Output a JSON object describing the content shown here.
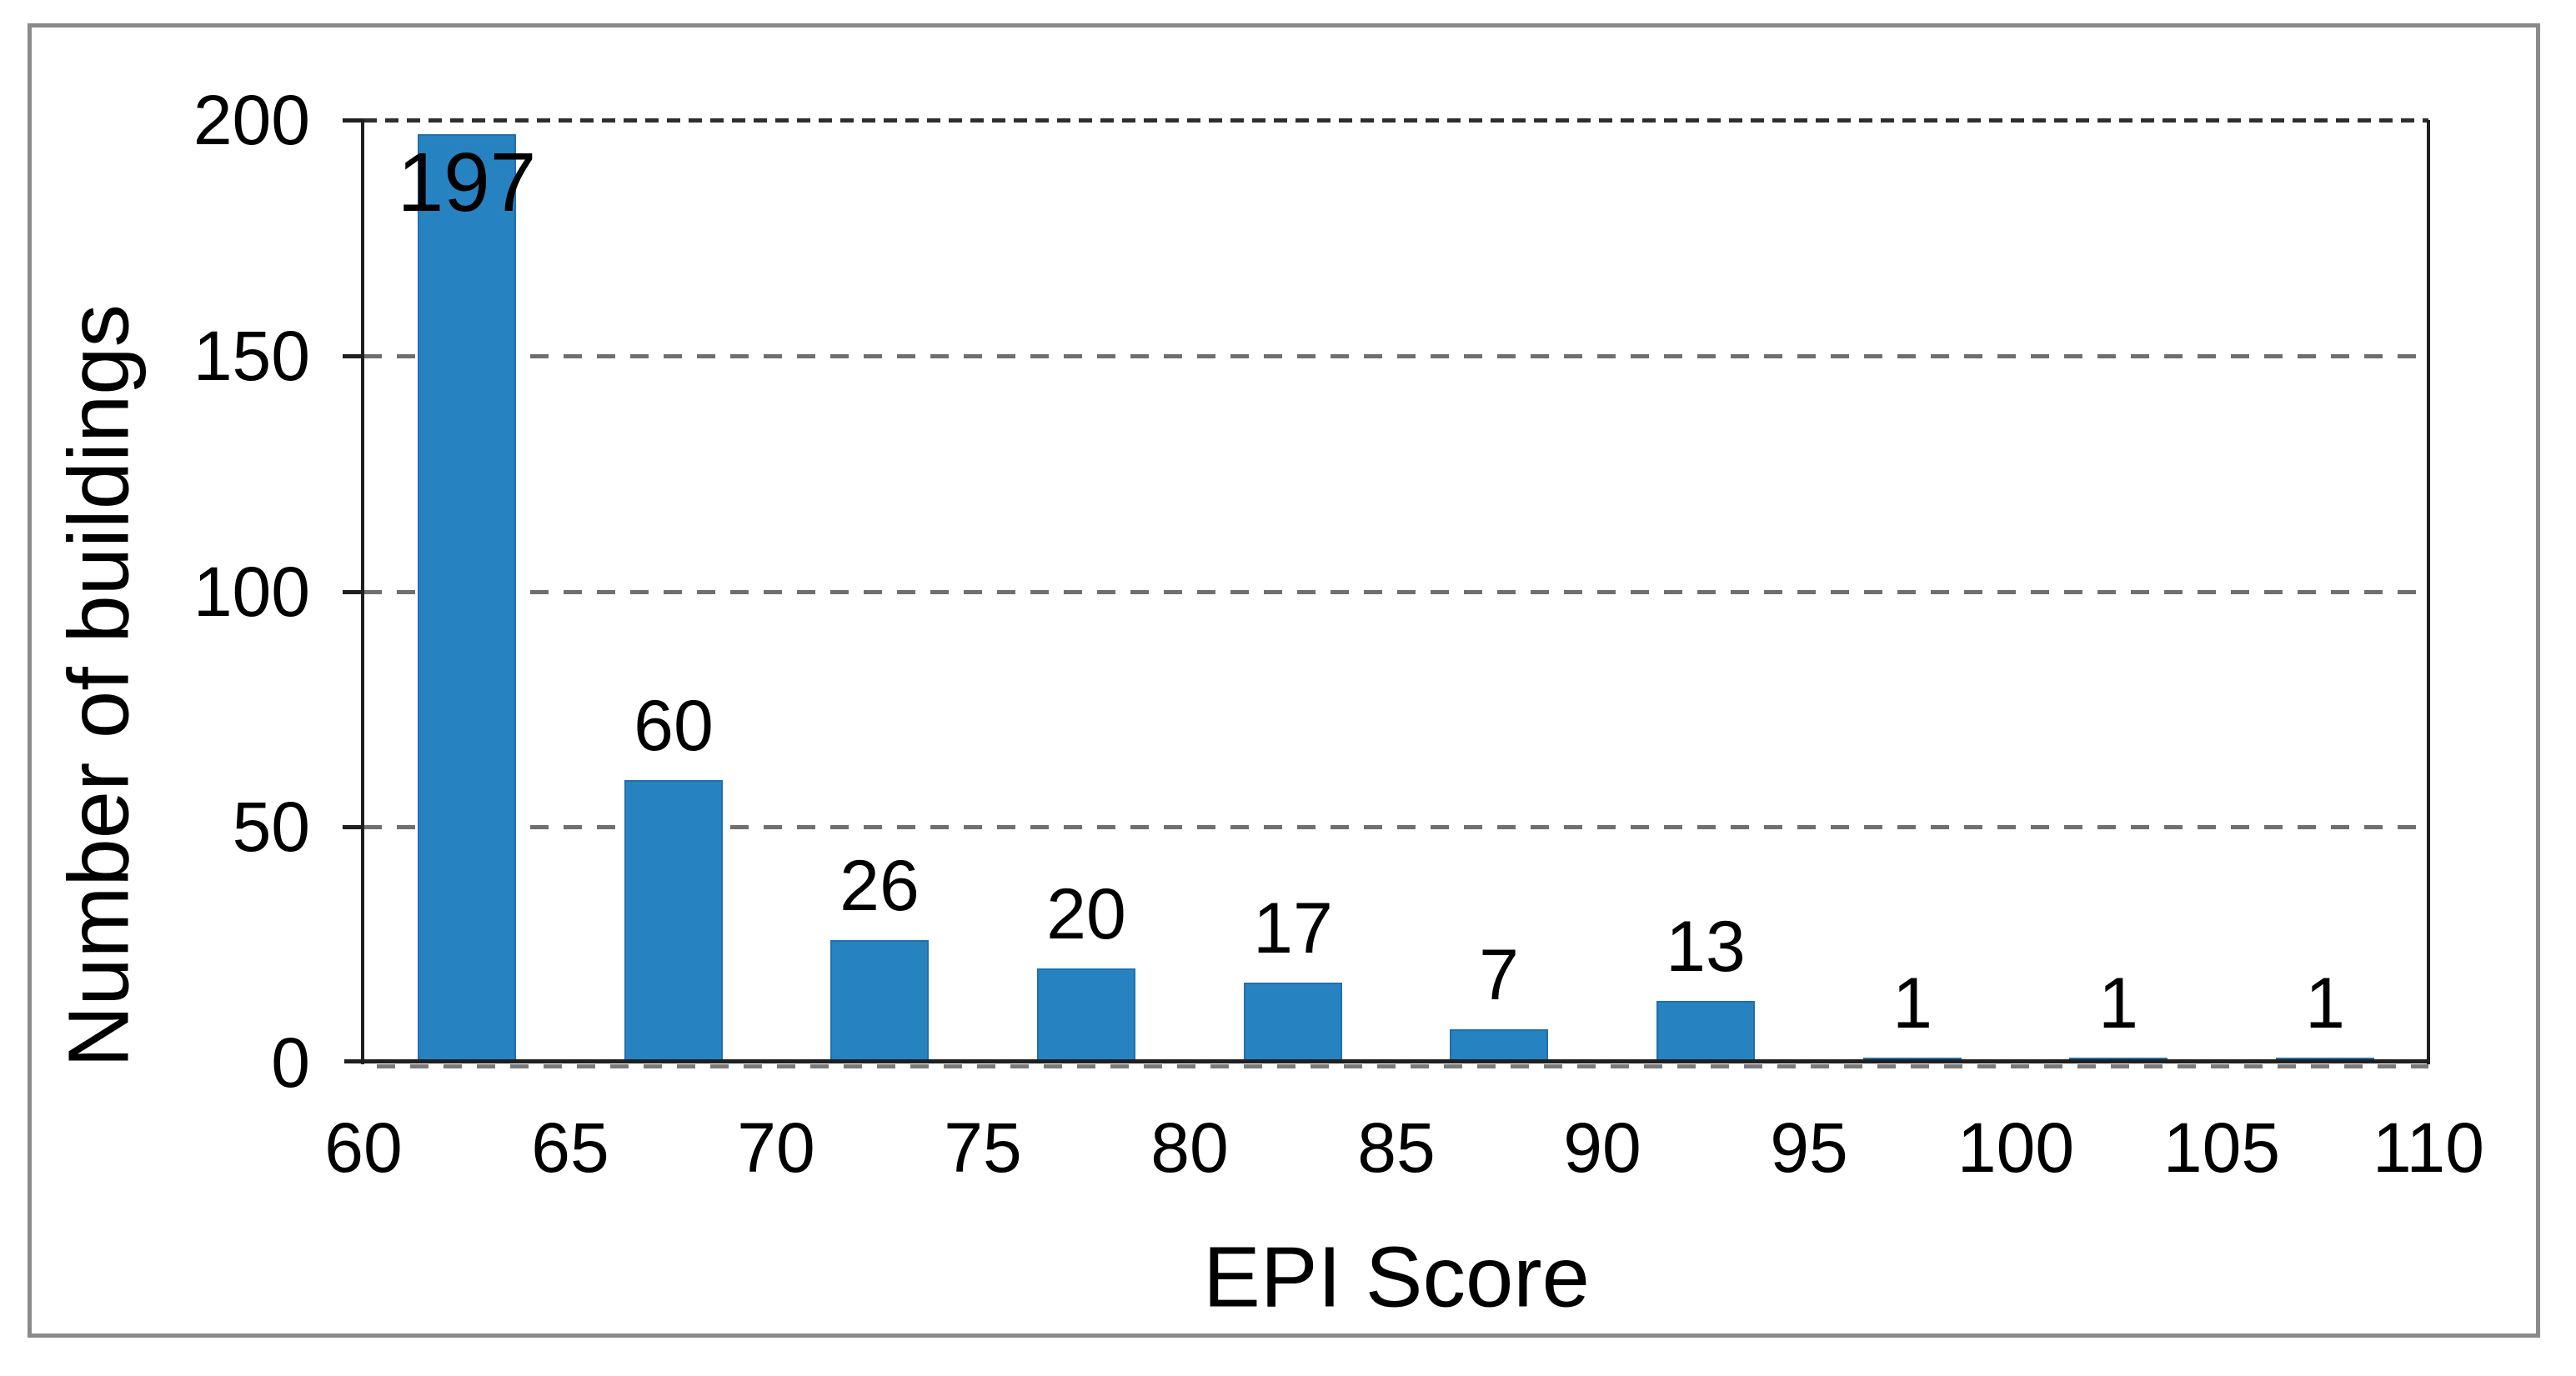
{
  "figure": {
    "background": "#ffffff",
    "border_color": "#8a8a8a"
  },
  "chart_data": {
    "type": "bar",
    "title": "",
    "xlabel": "EPI Score",
    "ylabel": "Number of buildings",
    "bin_width": 5,
    "bin_centers": [
      62.5,
      67.5,
      72.5,
      77.5,
      82.5,
      87.5,
      92.5,
      97.5,
      102.5,
      107.5
    ],
    "values": [
      197,
      60,
      26,
      20,
      17,
      7,
      13,
      1,
      1,
      1
    ],
    "data_labels": [
      "197",
      "60",
      "26",
      "20",
      "17",
      "7",
      "13",
      "1",
      "1",
      "1"
    ],
    "x_tick_labels": [
      "60",
      "65",
      "70",
      "75",
      "80",
      "85",
      "90",
      "95",
      "100",
      "105",
      "110"
    ],
    "x_tick_values": [
      60,
      65,
      70,
      75,
      80,
      85,
      90,
      95,
      100,
      105,
      110
    ],
    "y_tick_labels": [
      "0",
      "50",
      "100",
      "150",
      "200"
    ],
    "y_tick_values": [
      0,
      50,
      100,
      150,
      200
    ],
    "xlim": [
      60,
      110
    ],
    "ylim": [
      0,
      200
    ],
    "grid": "horizontal-dashed",
    "legend_position": "none",
    "colors": {
      "bar": "#2782c1",
      "gridline": "#6f6f6f",
      "gridline_top": "#2e2e2e",
      "axis": "#1f1f1f",
      "label_text": "#000000"
    }
  }
}
